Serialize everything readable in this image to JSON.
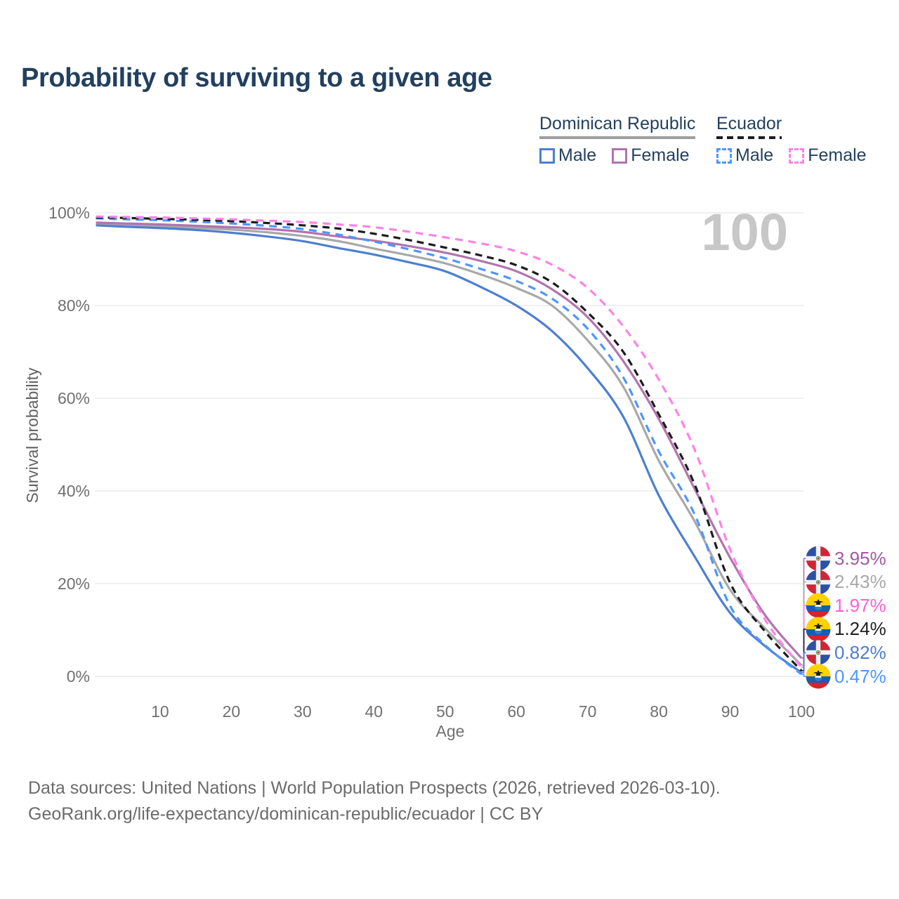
{
  "title": "Probability of surviving to a given age",
  "watermark": "100",
  "legend": {
    "groups": [
      {
        "name": "Dominican Republic",
        "underline": "solid",
        "underline_color": "#9e9e9e",
        "items": [
          {
            "label": "Male",
            "style": "solid",
            "color": "#4d7fd0"
          },
          {
            "label": "Female",
            "style": "solid",
            "color": "#b173af"
          }
        ]
      },
      {
        "name": "Ecuador",
        "underline": "dashed",
        "underline_color": "#1c1c1c",
        "items": [
          {
            "label": "Male",
            "style": "dashed",
            "color": "#4d96ff"
          },
          {
            "label": "Female",
            "style": "dashed",
            "color": "#ff82e8"
          }
        ]
      }
    ]
  },
  "y_axis": {
    "title": "Survival probability",
    "ticks": [
      {
        "label": "0%",
        "value": 0
      },
      {
        "label": "20%",
        "value": 20
      },
      {
        "label": "40%",
        "value": 40
      },
      {
        "label": "60%",
        "value": 60
      },
      {
        "label": "80%",
        "value": 80
      },
      {
        "label": "100%",
        "value": 100
      }
    ]
  },
  "x_axis": {
    "title": "Age",
    "ticks": [
      {
        "label": "10",
        "value": 10
      },
      {
        "label": "20",
        "value": 20
      },
      {
        "label": "30",
        "value": 30
      },
      {
        "label": "40",
        "value": 40
      },
      {
        "label": "50",
        "value": 50
      },
      {
        "label": "60",
        "value": 60
      },
      {
        "label": "70",
        "value": 70
      },
      {
        "label": "80",
        "value": 80
      },
      {
        "label": "90",
        "value": 90
      },
      {
        "label": "100",
        "value": 100
      }
    ]
  },
  "end_labels": [
    {
      "value": "3.95%",
      "flag": "dominican-republic",
      "text_color": "#a159a4",
      "series": "dr_female"
    },
    {
      "value": "2.43%",
      "flag": "dominican-republic",
      "text_color": "#a8a8a8",
      "series": "dr_total"
    },
    {
      "value": "1.97%",
      "flag": "ecuador",
      "text_color": "#fb60dc",
      "series": "ec_female"
    },
    {
      "value": "1.24%",
      "flag": "ecuador",
      "text_color": "#1f1f1f",
      "series": "ec_total"
    },
    {
      "value": "0.82%",
      "flag": "dominican-republic",
      "text_color": "#4d7cce",
      "series": "dr_male"
    },
    {
      "value": "0.47%",
      "flag": "ecuador",
      "text_color": "#4d96ff",
      "series": "ec_male"
    }
  ],
  "footer": {
    "line1": "Data sources: United Nations | World Population Prospects (2026, retrieved 2026-03-10).",
    "line2": "GeoRank.org/life-expectancy/dominican-republic/ecuador | CC BY"
  },
  "chart_data": {
    "type": "line",
    "title": "Probability of surviving to a given age",
    "xlabel": "Age",
    "ylabel": "Survival probability",
    "xlim": [
      0,
      100
    ],
    "ylim_percent": [
      0,
      100
    ],
    "grid": "horizontal",
    "highlighted_age": 100,
    "x_ages": [
      1,
      5,
      10,
      15,
      20,
      25,
      30,
      35,
      40,
      45,
      50,
      55,
      60,
      65,
      70,
      75,
      80,
      85,
      90,
      95,
      100
    ],
    "series": [
      {
        "id": "dr_total",
        "name": "Dominican Republic (both sexes)",
        "color": "#a8a8a8",
        "dash": false,
        "values": [
          97.6,
          97.4,
          97.1,
          96.8,
          96.4,
          95.8,
          95.0,
          93.9,
          92.3,
          90.8,
          89.1,
          86.7,
          83.8,
          80.0,
          72.5,
          62.5,
          46.5,
          33.5,
          18.7,
          10.2,
          2.43
        ]
      },
      {
        "id": "dr_male",
        "name": "Dominican Republic Male",
        "color": "#4d7fd0",
        "dash": false,
        "values": [
          97.3,
          97.0,
          96.7,
          96.3,
          95.7,
          94.9,
          93.9,
          92.4,
          91.0,
          89.3,
          87.4,
          84.0,
          80.0,
          74.5,
          66.5,
          56.0,
          39.0,
          25.9,
          13.7,
          6.4,
          0.82
        ]
      },
      {
        "id": "dr_female",
        "name": "Dominican Republic Female",
        "color": "#b173af",
        "dash": false,
        "values": [
          97.9,
          97.7,
          97.5,
          97.2,
          96.9,
          96.5,
          95.9,
          94.9,
          94.0,
          92.8,
          91.4,
          89.6,
          87.4,
          83.5,
          77.5,
          68.0,
          55.5,
          40.5,
          25.6,
          13.0,
          3.95
        ]
      },
      {
        "id": "ec_male",
        "name": "Ecuador Male",
        "color": "#4d96ff",
        "dash": true,
        "values": [
          98.8,
          98.6,
          98.4,
          98.1,
          97.7,
          97.2,
          96.5,
          95.3,
          93.8,
          92.1,
          90.2,
          87.9,
          85.3,
          81.5,
          75.0,
          64.5,
          48.5,
          35.0,
          15.2,
          6.6,
          0.47
        ]
      },
      {
        "id": "ec_total",
        "name": "Ecuador (both sexes)",
        "color": "#1c1c1c",
        "dash": true,
        "values": [
          99.0,
          98.9,
          98.7,
          98.5,
          98.2,
          97.8,
          97.3,
          96.6,
          95.5,
          94.1,
          92.5,
          90.8,
          88.7,
          85.0,
          78.5,
          70.0,
          56.5,
          41.5,
          20.2,
          9.5,
          1.24
        ]
      },
      {
        "id": "ec_female",
        "name": "Ecuador Female",
        "color": "#ff82e8",
        "dash": true,
        "values": [
          99.2,
          99.1,
          99.0,
          98.8,
          98.6,
          98.3,
          98.0,
          97.5,
          96.9,
          95.9,
          94.7,
          93.4,
          91.7,
          88.8,
          83.8,
          75.5,
          64.0,
          49.0,
          27.4,
          12.0,
          1.97
        ]
      }
    ],
    "values_at_age_100_percent": {
      "dr_female": 3.95,
      "dr_total": 2.43,
      "ec_female": 1.97,
      "ec_total": 1.24,
      "dr_male": 0.82,
      "ec_male": 0.47
    }
  }
}
